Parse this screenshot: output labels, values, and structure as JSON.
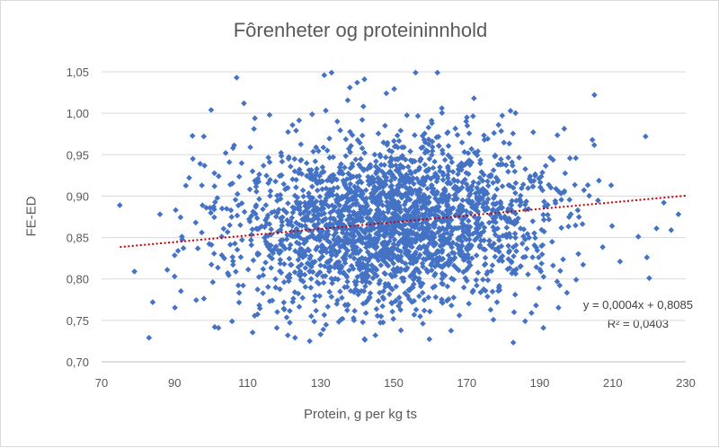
{
  "chart_data": {
    "type": "scatter",
    "title": "Fôrenheter og proteininnhold",
    "xlabel": "Protein, g per kg ts",
    "ylabel": "FE-ED",
    "xlim": [
      70,
      230
    ],
    "ylim": [
      0.7,
      1.05
    ],
    "x_ticks": [
      "70",
      "90",
      "110",
      "130",
      "150",
      "170",
      "190",
      "210",
      "230"
    ],
    "y_ticks": [
      "0,70",
      "0,75",
      "0,80",
      "0,85",
      "0,90",
      "0,95",
      "1,00",
      "1,05"
    ],
    "grid": "horizontal",
    "legend": "none",
    "points": [
      [
        75,
        0.889
      ],
      [
        79,
        0.809
      ],
      [
        83,
        0.729
      ],
      [
        84,
        0.772
      ],
      [
        86,
        0.878
      ],
      [
        88,
        0.811
      ],
      [
        90,
        0.803
      ],
      [
        92,
        0.851
      ],
      [
        94,
        0.922
      ],
      [
        95,
        0.945
      ],
      [
        97,
        0.939
      ],
      [
        98,
        0.972
      ],
      [
        100,
        1.004
      ],
      [
        101,
        0.742
      ],
      [
        103,
        0.885
      ],
      [
        104,
        0.952
      ],
      [
        105,
        0.941
      ],
      [
        106,
        0.958
      ],
      [
        107,
        1.043
      ],
      [
        108,
        0.865
      ],
      [
        109,
        1.012
      ],
      [
        112,
        0.994
      ],
      [
        116,
        0.998
      ],
      [
        118,
        0.741
      ],
      [
        121,
        0.732
      ],
      [
        123,
        0.729
      ],
      [
        127,
        0.725
      ],
      [
        130,
        0.733
      ],
      [
        131,
        1.046
      ],
      [
        133,
        1.049
      ],
      [
        136,
        0.752
      ],
      [
        138,
        1.031
      ],
      [
        140,
        1.037
      ],
      [
        142,
        1.041
      ],
      [
        145,
        0.732
      ],
      [
        148,
        1.024
      ],
      [
        152,
        0.738
      ],
      [
        156,
        1.049
      ],
      [
        158,
        0.746
      ],
      [
        162,
        1.049
      ],
      [
        168,
        0.756
      ],
      [
        172,
        1.018
      ],
      [
        182,
        1.003
      ],
      [
        186,
        0.749
      ],
      [
        189,
        0.768
      ],
      [
        191,
        0.741
      ],
      [
        200,
        0.799
      ],
      [
        205,
        1.022
      ],
      [
        212,
        0.821
      ],
      [
        217,
        0.851
      ],
      [
        219,
        0.972
      ],
      [
        220,
        0.801
      ],
      [
        222,
        0.861
      ],
      [
        224,
        0.892
      ],
      [
        226,
        0.859
      ],
      [
        228,
        0.878
      ]
    ],
    "trendline": {
      "type": "linear",
      "slope": 0.0004,
      "intercept": 0.8085,
      "equation": "y = 0,0004x + 0,8085",
      "r2": "R² = 0,0403",
      "color": "#c00000",
      "style": "dotted"
    },
    "point_color": "#4472c4"
  }
}
